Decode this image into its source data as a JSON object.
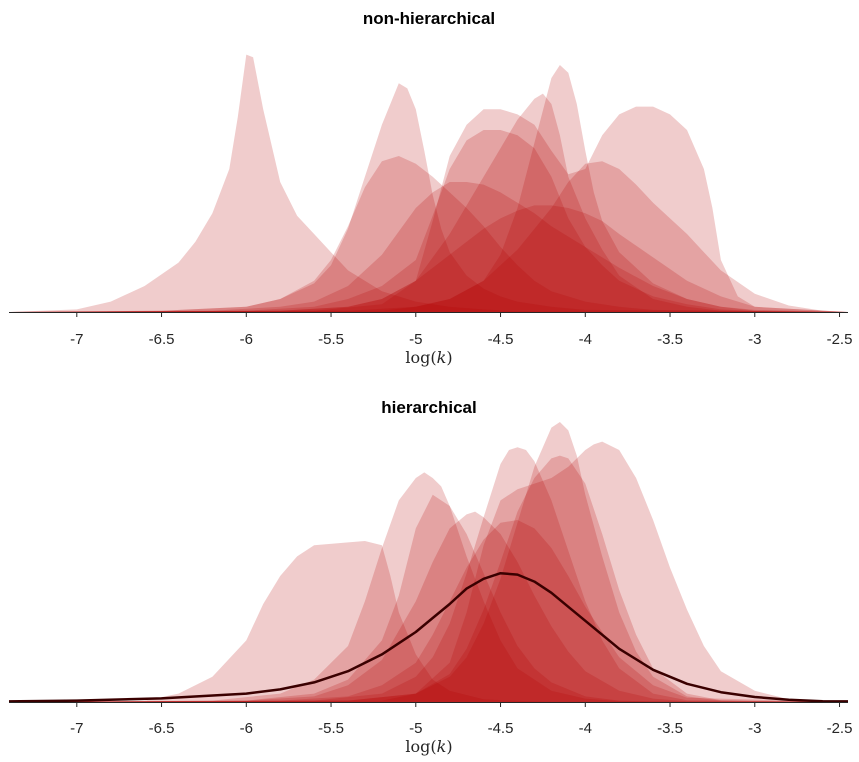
{
  "chart_data": [
    {
      "type": "area",
      "title": "non-hierarchical",
      "xlabel": "log(k)",
      "xlim": [
        -7.4,
        -2.45
      ],
      "xticks": [
        "-7",
        "-6.5",
        "-6",
        "-5.5",
        "-5",
        "-4.5",
        "-4",
        "-3.5",
        "-3",
        "-2.5"
      ],
      "xtick_values": [
        -7,
        -6.5,
        -6,
        -5.5,
        -5,
        -4.5,
        -4,
        -3.5,
        -3,
        -2.5
      ],
      "y_axis_visible": false,
      "grid": false,
      "fill_color": "#b30000",
      "series": [
        {
          "x": [
            -7.4,
            -7.0,
            -6.8,
            -6.6,
            -6.4,
            -6.3,
            -6.2,
            -6.1,
            -6.05,
            -6.0,
            -5.96,
            -5.9,
            -5.8,
            -5.7,
            -5.6,
            -5.5,
            -5.4,
            -5.2,
            -5.0,
            -4.8,
            -4.6,
            -4.4,
            -2.45
          ],
          "y": [
            0,
            0.01,
            0.04,
            0.1,
            0.19,
            0.27,
            0.38,
            0.55,
            0.75,
            0.99,
            0.98,
            0.78,
            0.5,
            0.37,
            0.3,
            0.23,
            0.16,
            0.08,
            0.04,
            0.02,
            0.01,
            0.003,
            0
          ],
          "opacity": 0.2
        },
        {
          "x": [
            -7.4,
            -6.5,
            -6.0,
            -5.8,
            -5.6,
            -5.5,
            -5.4,
            -5.3,
            -5.2,
            -5.1,
            -5.05,
            -5.0,
            -4.95,
            -4.9,
            -4.85,
            -4.8,
            -4.7,
            -4.6,
            -4.5,
            -4.4,
            -4.2,
            -4.0,
            -2.45
          ],
          "y": [
            0,
            0.005,
            0.02,
            0.05,
            0.11,
            0.18,
            0.32,
            0.52,
            0.72,
            0.88,
            0.86,
            0.78,
            0.62,
            0.45,
            0.32,
            0.23,
            0.14,
            0.09,
            0.06,
            0.04,
            0.02,
            0.008,
            0
          ],
          "opacity": 0.2
        },
        {
          "x": [
            -7.4,
            -6.5,
            -6.0,
            -5.8,
            -5.6,
            -5.5,
            -5.4,
            -5.3,
            -5.2,
            -5.1,
            -5.0,
            -4.9,
            -4.8,
            -4.7,
            -4.6,
            -4.5,
            -4.4,
            -4.3,
            -4.2,
            -4.0,
            -3.8,
            -3.6,
            -2.45
          ],
          "y": [
            0,
            0.005,
            0.02,
            0.05,
            0.12,
            0.2,
            0.33,
            0.48,
            0.58,
            0.6,
            0.57,
            0.52,
            0.46,
            0.4,
            0.33,
            0.25,
            0.18,
            0.12,
            0.08,
            0.04,
            0.02,
            0.008,
            0
          ],
          "opacity": 0.2
        },
        {
          "x": [
            -7.4,
            -6.2,
            -5.8,
            -5.6,
            -5.4,
            -5.2,
            -5.0,
            -4.9,
            -4.8,
            -4.7,
            -4.6,
            -4.5,
            -4.4,
            -4.3,
            -4.2,
            -4.0,
            -3.8,
            -3.6,
            -3.4,
            -3.2,
            -3.0,
            -2.45
          ],
          "y": [
            0,
            0.005,
            0.02,
            0.04,
            0.1,
            0.22,
            0.4,
            0.46,
            0.5,
            0.5,
            0.49,
            0.46,
            0.42,
            0.38,
            0.33,
            0.25,
            0.17,
            0.1,
            0.05,
            0.02,
            0.008,
            0
          ],
          "opacity": 0.2
        },
        {
          "x": [
            -7.4,
            -6.0,
            -5.6,
            -5.4,
            -5.2,
            -5.0,
            -4.9,
            -4.8,
            -4.7,
            -4.6,
            -4.5,
            -4.4,
            -4.3,
            -4.2,
            -4.1,
            -4.0,
            -3.9,
            -3.8,
            -3.6,
            -3.4,
            -3.2,
            -3.0,
            -2.45
          ],
          "y": [
            0,
            0.005,
            0.02,
            0.05,
            0.1,
            0.2,
            0.37,
            0.55,
            0.66,
            0.7,
            0.7,
            0.68,
            0.63,
            0.52,
            0.36,
            0.25,
            0.18,
            0.12,
            0.06,
            0.03,
            0.01,
            0.004,
            0
          ],
          "opacity": 0.2
        },
        {
          "x": [
            -7.4,
            -5.8,
            -5.4,
            -5.2,
            -5.0,
            -4.8,
            -4.6,
            -4.5,
            -4.4,
            -4.3,
            -4.2,
            -4.1,
            -4.0,
            -3.9,
            -3.8,
            -3.6,
            -3.4,
            -3.2,
            -3.0,
            -2.45
          ],
          "y": [
            0,
            0.005,
            0.02,
            0.05,
            0.12,
            0.22,
            0.32,
            0.36,
            0.39,
            0.41,
            0.41,
            0.4,
            0.38,
            0.35,
            0.3,
            0.21,
            0.12,
            0.06,
            0.02,
            0
          ],
          "opacity": 0.2
        },
        {
          "x": [
            -7.4,
            -5.8,
            -5.4,
            -5.2,
            -5.0,
            -4.8,
            -4.6,
            -4.5,
            -4.4,
            -4.3,
            -4.25,
            -4.2,
            -4.15,
            -4.1,
            -4.0,
            -3.9,
            -3.8,
            -3.6,
            -3.4,
            -3.2,
            -2.45
          ],
          "y": [
            0,
            0.005,
            0.02,
            0.05,
            0.12,
            0.3,
            0.52,
            0.63,
            0.74,
            0.82,
            0.84,
            0.8,
            0.68,
            0.52,
            0.36,
            0.24,
            0.14,
            0.05,
            0.02,
            0.005,
            0
          ],
          "opacity": 0.2
        },
        {
          "x": [
            -7.4,
            -5.4,
            -5.0,
            -4.8,
            -4.6,
            -4.5,
            -4.4,
            -4.3,
            -4.2,
            -4.15,
            -4.1,
            -4.05,
            -4.0,
            -3.95,
            -3.9,
            -3.8,
            -3.6,
            -3.4,
            -3.2,
            -3.0,
            -2.45
          ],
          "y": [
            0,
            0.005,
            0.02,
            0.05,
            0.12,
            0.22,
            0.4,
            0.65,
            0.9,
            0.95,
            0.92,
            0.8,
            0.62,
            0.46,
            0.35,
            0.23,
            0.11,
            0.05,
            0.02,
            0.005,
            0
          ],
          "opacity": 0.2
        },
        {
          "x": [
            -7.4,
            -5.6,
            -5.2,
            -5.0,
            -4.9,
            -4.8,
            -4.7,
            -4.6,
            -4.5,
            -4.4,
            -4.3,
            -4.2,
            -4.1,
            -4.0,
            -3.9,
            -3.8,
            -3.7,
            -3.6,
            -3.5,
            -3.4,
            -3.3,
            -3.25,
            -3.2,
            -3.1,
            -3.0,
            -2.45
          ],
          "y": [
            0,
            0.005,
            0.03,
            0.12,
            0.35,
            0.6,
            0.72,
            0.78,
            0.78,
            0.76,
            0.72,
            0.62,
            0.53,
            0.55,
            0.68,
            0.76,
            0.79,
            0.79,
            0.76,
            0.7,
            0.55,
            0.4,
            0.2,
            0.06,
            0.02,
            0
          ],
          "opacity": 0.2
        },
        {
          "x": [
            -7.4,
            -5.2,
            -5.0,
            -4.8,
            -4.6,
            -4.4,
            -4.2,
            -4.1,
            -4.0,
            -3.9,
            -3.8,
            -3.7,
            -3.6,
            -3.5,
            -3.4,
            -3.3,
            -3.2,
            -3.0,
            -2.8,
            -2.6,
            -2.45
          ],
          "y": [
            0,
            0.005,
            0.02,
            0.05,
            0.12,
            0.24,
            0.4,
            0.5,
            0.57,
            0.58,
            0.55,
            0.49,
            0.42,
            0.36,
            0.3,
            0.23,
            0.16,
            0.07,
            0.025,
            0.005,
            0
          ],
          "opacity": 0.2
        }
      ]
    },
    {
      "type": "area",
      "title": "hierarchical",
      "xlabel": "log(k)",
      "xlim": [
        -7.4,
        -2.45
      ],
      "xticks": [
        "-7",
        "-6.5",
        "-6",
        "-5.5",
        "-5",
        "-4.5",
        "-4",
        "-3.5",
        "-3",
        "-2.5"
      ],
      "xtick_values": [
        -7,
        -6.5,
        -6,
        -5.5,
        -5,
        -4.5,
        -4,
        -3.5,
        -3,
        -2.5
      ],
      "y_axis_visible": false,
      "grid": false,
      "fill_color": "#b30000",
      "series": [
        {
          "x": [
            -7.4,
            -6.6,
            -6.4,
            -6.2,
            -6.0,
            -5.9,
            -5.8,
            -5.7,
            -5.6,
            -5.4,
            -5.3,
            -5.2,
            -5.15,
            -5.1,
            -5.0,
            -4.9,
            -4.8,
            -4.6,
            -4.4,
            -4.2,
            -2.45
          ],
          "y": [
            0,
            0.005,
            0.03,
            0.09,
            0.22,
            0.35,
            0.45,
            0.52,
            0.56,
            0.57,
            0.575,
            0.56,
            0.45,
            0.32,
            0.17,
            0.08,
            0.04,
            0.01,
            0.004,
            0.001,
            0
          ],
          "opacity": 0.2
        },
        {
          "x": [
            -7.4,
            -6.2,
            -5.8,
            -5.6,
            -5.4,
            -5.3,
            -5.2,
            -5.1,
            -5.0,
            -4.95,
            -4.9,
            -4.85,
            -4.8,
            -4.7,
            -4.6,
            -4.5,
            -4.4,
            -4.2,
            -4.0,
            -3.8,
            -2.45
          ],
          "y": [
            0,
            0.005,
            0.03,
            0.08,
            0.2,
            0.36,
            0.55,
            0.72,
            0.8,
            0.82,
            0.8,
            0.77,
            0.7,
            0.52,
            0.36,
            0.22,
            0.12,
            0.04,
            0.012,
            0.003,
            0
          ],
          "opacity": 0.2
        },
        {
          "x": [
            -7.4,
            -6.0,
            -5.6,
            -5.4,
            -5.2,
            -5.1,
            -5.0,
            -4.9,
            -4.8,
            -4.7,
            -4.6,
            -4.5,
            -4.4,
            -4.3,
            -4.2,
            -4.0,
            -3.8,
            -3.6,
            -2.45
          ],
          "y": [
            0,
            0.005,
            0.03,
            0.08,
            0.22,
            0.38,
            0.62,
            0.74,
            0.7,
            0.6,
            0.46,
            0.32,
            0.2,
            0.12,
            0.07,
            0.02,
            0.005,
            0.001,
            0
          ],
          "opacity": 0.2
        },
        {
          "x": [
            -7.4,
            -6.0,
            -5.6,
            -5.4,
            -5.2,
            -5.0,
            -4.9,
            -4.8,
            -4.7,
            -4.65,
            -4.6,
            -4.5,
            -4.4,
            -4.3,
            -4.2,
            -4.1,
            -4.0,
            -3.8,
            -3.6,
            -3.4,
            -2.45
          ],
          "y": [
            0,
            0.005,
            0.02,
            0.06,
            0.15,
            0.36,
            0.5,
            0.62,
            0.67,
            0.68,
            0.66,
            0.6,
            0.5,
            0.38,
            0.27,
            0.18,
            0.11,
            0.04,
            0.012,
            0.003,
            0
          ],
          "opacity": 0.2
        },
        {
          "x": [
            -7.4,
            -5.8,
            -5.4,
            -5.2,
            -5.0,
            -4.9,
            -4.8,
            -4.7,
            -4.6,
            -4.5,
            -4.4,
            -4.3,
            -4.2,
            -4.1,
            -4.0,
            -3.8,
            -3.6,
            -3.4,
            -2.45
          ],
          "y": [
            0,
            0.005,
            0.02,
            0.06,
            0.14,
            0.24,
            0.36,
            0.48,
            0.58,
            0.64,
            0.65,
            0.62,
            0.55,
            0.45,
            0.34,
            0.16,
            0.06,
            0.015,
            0
          ],
          "opacity": 0.2
        },
        {
          "x": [
            -7.4,
            -5.6,
            -5.2,
            -5.0,
            -4.9,
            -4.8,
            -4.7,
            -4.6,
            -4.5,
            -4.45,
            -4.4,
            -4.35,
            -4.3,
            -4.2,
            -4.1,
            -4.0,
            -3.9,
            -3.8,
            -3.6,
            -3.4,
            -2.45
          ],
          "y": [
            0,
            0.005,
            0.03,
            0.09,
            0.16,
            0.28,
            0.46,
            0.66,
            0.85,
            0.9,
            0.91,
            0.9,
            0.86,
            0.72,
            0.54,
            0.36,
            0.22,
            0.12,
            0.03,
            0.006,
            0
          ],
          "opacity": 0.2
        },
        {
          "x": [
            -7.4,
            -5.4,
            -5.0,
            -4.8,
            -4.7,
            -4.6,
            -4.5,
            -4.4,
            -4.3,
            -4.2,
            -4.15,
            -4.1,
            -4.0,
            -3.9,
            -3.8,
            -3.7,
            -3.6,
            -3.4,
            -3.2,
            -2.45
          ],
          "y": [
            0,
            0.005,
            0.03,
            0.1,
            0.19,
            0.33,
            0.5,
            0.68,
            0.8,
            0.87,
            0.88,
            0.87,
            0.78,
            0.6,
            0.4,
            0.24,
            0.12,
            0.03,
            0.006,
            0
          ],
          "opacity": 0.2
        },
        {
          "x": [
            -7.4,
            -5.4,
            -5.0,
            -4.8,
            -4.7,
            -4.6,
            -4.5,
            -4.4,
            -4.3,
            -4.2,
            -4.15,
            -4.1,
            -4.05,
            -4.0,
            -3.9,
            -3.8,
            -3.7,
            -3.6,
            -3.4,
            -3.2,
            -2.45
          ],
          "y": [
            0,
            0.005,
            0.03,
            0.09,
            0.16,
            0.28,
            0.44,
            0.64,
            0.84,
            0.98,
            1.0,
            0.97,
            0.88,
            0.74,
            0.52,
            0.32,
            0.18,
            0.09,
            0.02,
            0.005,
            0
          ],
          "opacity": 0.2
        },
        {
          "x": [
            -7.4,
            -5.2,
            -5.0,
            -4.8,
            -4.7,
            -4.6,
            -4.5,
            -4.4,
            -4.3,
            -4.2,
            -4.1,
            -4.0,
            -3.95,
            -3.9,
            -3.8,
            -3.7,
            -3.6,
            -3.5,
            -3.4,
            -3.3,
            -3.2,
            -3.0,
            -2.8,
            -2.45
          ],
          "y": [
            0,
            0.005,
            0.03,
            0.14,
            0.32,
            0.56,
            0.72,
            0.76,
            0.78,
            0.8,
            0.84,
            0.9,
            0.92,
            0.93,
            0.9,
            0.8,
            0.65,
            0.48,
            0.33,
            0.2,
            0.11,
            0.04,
            0.01,
            0
          ],
          "opacity": 0.2
        }
      ],
      "overlay_line": {
        "color": "#3a0000",
        "x": [
          -7.4,
          -7.0,
          -6.5,
          -6.0,
          -5.8,
          -5.6,
          -5.4,
          -5.2,
          -5.0,
          -4.9,
          -4.8,
          -4.7,
          -4.6,
          -4.5,
          -4.4,
          -4.3,
          -4.2,
          -4.1,
          -4.0,
          -3.8,
          -3.6,
          -3.4,
          -3.2,
          -3.0,
          -2.8,
          -2.6,
          -2.45
        ],
        "y": [
          0.002,
          0.005,
          0.013,
          0.03,
          0.045,
          0.07,
          0.11,
          0.17,
          0.25,
          0.3,
          0.35,
          0.405,
          0.44,
          0.46,
          0.455,
          0.43,
          0.39,
          0.34,
          0.29,
          0.19,
          0.115,
          0.065,
          0.035,
          0.018,
          0.008,
          0.003,
          0.002
        ]
      }
    }
  ]
}
